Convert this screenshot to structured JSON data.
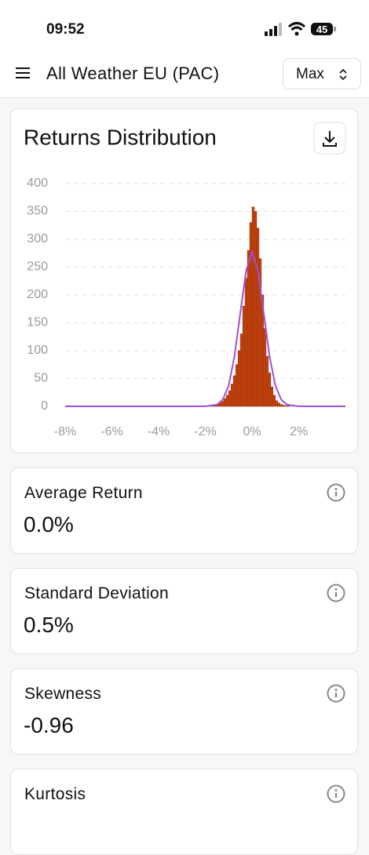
{
  "status_bar": {
    "time": "09:52",
    "battery": "45"
  },
  "header": {
    "title": "All Weather EU (PAC)",
    "range": "Max"
  },
  "chart_data": {
    "type": "histogram",
    "title": "Returns Distribution",
    "bins": [
      -2.0,
      -1.9,
      -1.8,
      -1.7,
      -1.6,
      -1.5,
      -1.4,
      -1.3,
      -1.2,
      -1.1,
      -1.0,
      -0.9,
      -0.8,
      -0.7,
      -0.6,
      -0.5,
      -0.4,
      -0.3,
      -0.2,
      -0.1,
      0.0,
      0.1,
      0.2,
      0.3,
      0.4,
      0.5,
      0.6,
      0.7,
      0.8,
      0.9,
      1.0,
      1.1,
      1.2,
      1.3,
      1.4,
      1.5,
      1.6
    ],
    "values": [
      1,
      1,
      2,
      2,
      3,
      4,
      6,
      9,
      14,
      20,
      28,
      40,
      55,
      75,
      100,
      130,
      180,
      230,
      280,
      330,
      358,
      350,
      320,
      265,
      200,
      140,
      90,
      60,
      35,
      20,
      10,
      6,
      3,
      2,
      1,
      1
    ],
    "color": "#c4420e",
    "normal_curve": {
      "color": "#a04fd8",
      "x": [
        -8,
        -2,
        -1.5,
        -1.25,
        -1,
        -0.75,
        -0.5,
        -0.25,
        0,
        0.25,
        0.5,
        0.75,
        1,
        1.25,
        1.5,
        2,
        4
      ],
      "values": [
        0,
        0,
        3,
        12,
        37,
        90,
        168,
        244,
        277,
        244,
        168,
        90,
        37,
        12,
        3,
        0,
        0
      ]
    },
    "xlim": [
      -8,
      4
    ],
    "xticks": [
      {
        "value": -8,
        "label": "-8%"
      },
      {
        "value": -6,
        "label": "-6%"
      },
      {
        "value": -4,
        "label": "-4%"
      },
      {
        "value": -2,
        "label": "-2%"
      },
      {
        "value": 0,
        "label": "0%"
      },
      {
        "value": 2,
        "label": "2%"
      }
    ],
    "ylim": [
      0,
      400
    ],
    "yticks": [
      0,
      50,
      100,
      150,
      200,
      250,
      300,
      350,
      400
    ],
    "grid": true
  },
  "stats": [
    {
      "label": "Average Return",
      "value": "0.0%"
    },
    {
      "label": "Standard Deviation",
      "value": "0.5%"
    },
    {
      "label": "Skewness",
      "value": "-0.96"
    },
    {
      "label": "Kurtosis"
    }
  ]
}
